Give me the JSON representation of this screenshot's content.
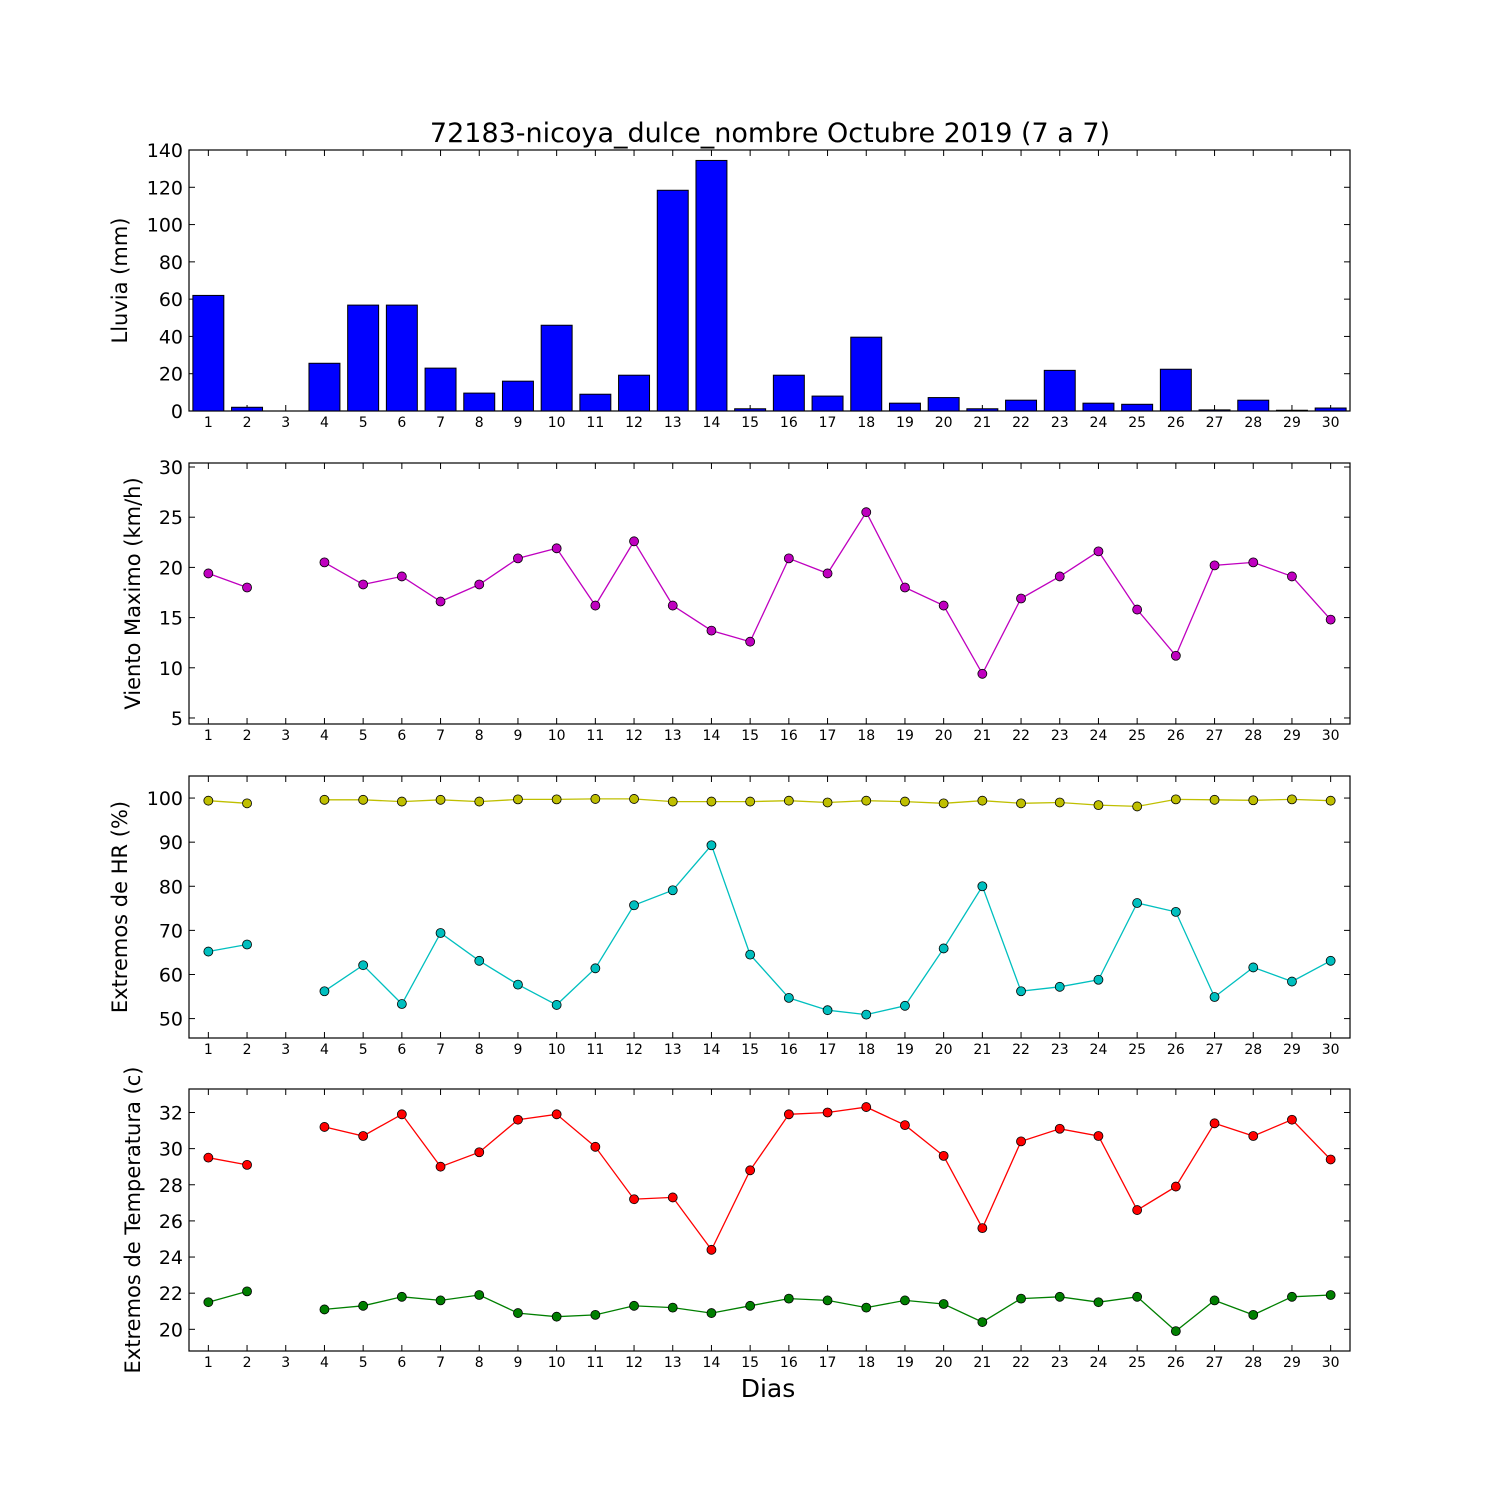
{
  "title": "72183-nicoya_dulce_nombre Octubre 2019  (7 a 7)",
  "xlabel": "Dias",
  "days": [
    1,
    2,
    3,
    4,
    5,
    6,
    7,
    8,
    9,
    10,
    11,
    12,
    13,
    14,
    15,
    16,
    17,
    18,
    19,
    20,
    21,
    22,
    23,
    24,
    25,
    26,
    27,
    28,
    29,
    30
  ],
  "chart_data": [
    {
      "type": "bar",
      "ylabel": "Lluvia (mm)",
      "ylim": [
        0,
        140
      ],
      "yticks": [
        0,
        20,
        40,
        60,
        80,
        100,
        120,
        140
      ],
      "color": "#0000ff",
      "x": [
        1,
        2,
        3,
        4,
        5,
        6,
        7,
        8,
        9,
        10,
        11,
        12,
        13,
        14,
        15,
        16,
        17,
        18,
        19,
        20,
        21,
        22,
        23,
        24,
        25,
        26,
        27,
        28,
        29,
        30
      ],
      "series": [
        {
          "values": [
            62,
            2,
            0,
            25.6,
            56.8,
            56.8,
            23,
            9.6,
            16,
            46,
            9,
            19.2,
            118.4,
            134.4,
            1.2,
            19.2,
            8,
            39.6,
            4.2,
            7.2,
            1.2,
            5.8,
            21.8,
            4.2,
            3.6,
            22.4,
            0.6,
            5.8,
            0.4,
            1.6
          ]
        }
      ]
    },
    {
      "type": "line",
      "ylabel": "Viento Maximo (km/h)",
      "ylim": [
        4.4,
        30.4
      ],
      "yticks": [
        5,
        10,
        15,
        20,
        25,
        30
      ],
      "x": [
        1,
        2,
        3,
        4,
        5,
        6,
        7,
        8,
        9,
        10,
        11,
        12,
        13,
        14,
        15,
        16,
        17,
        18,
        19,
        20,
        21,
        22,
        23,
        24,
        25,
        26,
        27,
        28,
        29,
        30
      ],
      "series": [
        {
          "color": "#bf00bf",
          "values": [
            19.4,
            18.0,
            null,
            20.5,
            18.3,
            19.1,
            16.6,
            18.3,
            20.9,
            21.9,
            16.2,
            22.6,
            16.2,
            13.7,
            12.6,
            20.9,
            19.4,
            25.5,
            18.0,
            16.2,
            9.4,
            16.9,
            19.1,
            21.6,
            15.8,
            11.2,
            20.2,
            20.5,
            19.1,
            14.8
          ]
        }
      ]
    },
    {
      "type": "line",
      "ylabel": "Extremos de HR (%)",
      "ylim": [
        45.6,
        105
      ],
      "yticks": [
        50,
        60,
        70,
        80,
        90,
        100
      ],
      "x": [
        1,
        2,
        3,
        4,
        5,
        6,
        7,
        8,
        9,
        10,
        11,
        12,
        13,
        14,
        15,
        16,
        17,
        18,
        19,
        20,
        21,
        22,
        23,
        24,
        25,
        26,
        27,
        28,
        29,
        30
      ],
      "series": [
        {
          "color": "#bfbf00",
          "values": [
            99.4,
            98.8,
            null,
            99.6,
            99.6,
            99.2,
            99.6,
            99.2,
            99.7,
            99.7,
            99.8,
            99.8,
            99.2,
            99.2,
            99.2,
            99.4,
            99.0,
            99.4,
            99.2,
            98.8,
            99.4,
            98.8,
            99.0,
            98.4,
            98.1,
            99.7,
            99.6,
            99.5,
            99.7,
            99.4
          ]
        },
        {
          "color": "#00bfbf",
          "values": [
            65.2,
            66.8,
            null,
            56.2,
            62.1,
            53.3,
            69.4,
            63.1,
            57.7,
            53.1,
            61.4,
            75.7,
            79.1,
            89.3,
            64.5,
            54.7,
            51.9,
            50.9,
            52.9,
            65.9,
            80.0,
            56.2,
            57.2,
            58.8,
            76.2,
            74.2,
            54.9,
            61.6,
            58.4,
            63.1
          ]
        }
      ]
    },
    {
      "type": "line",
      "ylabel": "Extremos de Temperatura (c)",
      "ylim": [
        18.8,
        33.3
      ],
      "yticks": [
        20,
        22,
        24,
        26,
        28,
        30,
        32
      ],
      "x": [
        1,
        2,
        3,
        4,
        5,
        6,
        7,
        8,
        9,
        10,
        11,
        12,
        13,
        14,
        15,
        16,
        17,
        18,
        19,
        20,
        21,
        22,
        23,
        24,
        25,
        26,
        27,
        28,
        29,
        30
      ],
      "series": [
        {
          "color": "#ff0000",
          "values": [
            29.5,
            29.1,
            null,
            31.2,
            30.7,
            31.9,
            29.0,
            29.8,
            31.6,
            31.9,
            30.1,
            27.2,
            27.3,
            24.4,
            28.8,
            31.9,
            32.0,
            32.3,
            31.3,
            29.6,
            25.6,
            30.4,
            31.1,
            30.7,
            26.6,
            27.9,
            31.4,
            30.7,
            31.6,
            29.4
          ]
        },
        {
          "color": "#007f00",
          "values": [
            21.5,
            22.1,
            null,
            21.1,
            21.3,
            21.8,
            21.6,
            21.9,
            20.9,
            20.7,
            20.8,
            21.3,
            21.2,
            20.9,
            21.3,
            21.7,
            21.6,
            21.2,
            21.6,
            21.4,
            20.4,
            21.7,
            21.8,
            21.5,
            21.8,
            19.9,
            21.6,
            20.8,
            21.8,
            21.9
          ]
        }
      ]
    }
  ]
}
